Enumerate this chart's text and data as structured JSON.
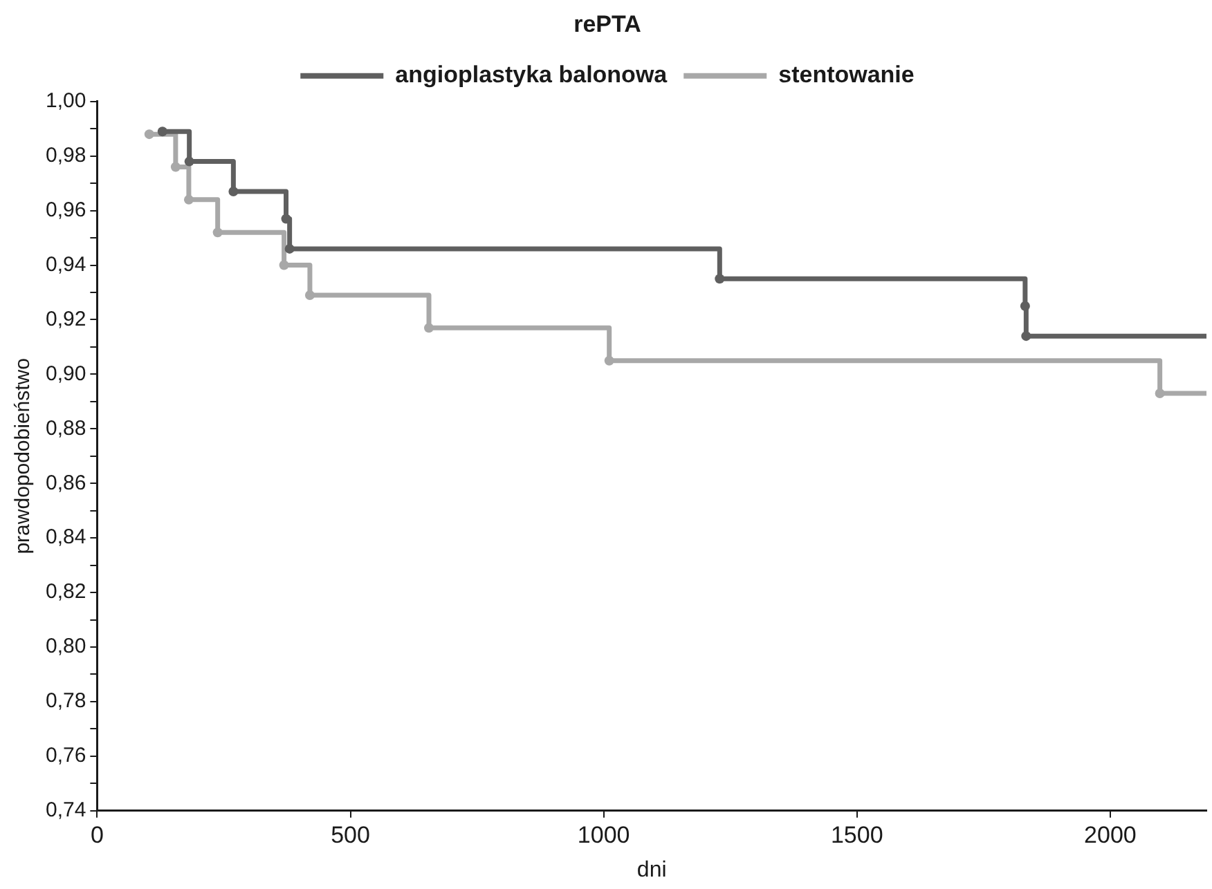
{
  "chart_data": {
    "type": "step",
    "legend_title": "rePTA",
    "xlabel": "dni",
    "ylabel": "prawdopodobieństwo",
    "xlim": [
      0,
      2190
    ],
    "xticks": [
      0,
      500,
      1000,
      1500,
      2000
    ],
    "ylim": [
      0.74,
      1.0
    ],
    "yticks": [
      {
        "value": 0.74,
        "label": "0,74"
      },
      {
        "value": 0.75,
        "label": null
      },
      {
        "value": 0.76,
        "label": "0,76"
      },
      {
        "value": 0.77,
        "label": null
      },
      {
        "value": 0.78,
        "label": "0,78"
      },
      {
        "value": 0.79,
        "label": null
      },
      {
        "value": 0.8,
        "label": "0,80"
      },
      {
        "value": 0.81,
        "label": null
      },
      {
        "value": 0.82,
        "label": "0,82"
      },
      {
        "value": 0.83,
        "label": null
      },
      {
        "value": 0.84,
        "label": "0,84"
      },
      {
        "value": 0.85,
        "label": null
      },
      {
        "value": 0.86,
        "label": "0,86"
      },
      {
        "value": 0.87,
        "label": null
      },
      {
        "value": 0.88,
        "label": "0,88"
      },
      {
        "value": 0.89,
        "label": null
      },
      {
        "value": 0.9,
        "label": "0,90"
      },
      {
        "value": 0.91,
        "label": null
      },
      {
        "value": 0.92,
        "label": "0,92"
      },
      {
        "value": 0.93,
        "label": null
      },
      {
        "value": 0.94,
        "label": "0,94"
      },
      {
        "value": 0.95,
        "label": null
      },
      {
        "value": 0.96,
        "label": "0,96"
      },
      {
        "value": 0.97,
        "label": null
      },
      {
        "value": 0.98,
        "label": "0,98"
      },
      {
        "value": 0.99,
        "label": null
      },
      {
        "value": 1.0,
        "label": "1,00"
      }
    ],
    "grid": false,
    "legend": "top",
    "marker": "circle",
    "line_style": "solid",
    "series": [
      {
        "name": "angioplastyka balonowa",
        "color": "#5f5f5f",
        "x": [
          129,
          182,
          269,
          373,
          380,
          1229,
          1832,
          1834,
          2190
        ],
        "values": [
          0.989,
          0.978,
          0.967,
          0.957,
          0.946,
          0.935,
          0.925,
          0.914,
          0.914
        ]
      },
      {
        "name": "stentowanie",
        "color": "#a8a8a8",
        "x": [
          103,
          155,
          181,
          238,
          369,
          420,
          655,
          1011,
          2098,
          2190
        ],
        "values": [
          0.988,
          0.976,
          0.964,
          0.952,
          0.94,
          0.929,
          0.917,
          0.905,
          0.893,
          0.893
        ]
      }
    ]
  }
}
